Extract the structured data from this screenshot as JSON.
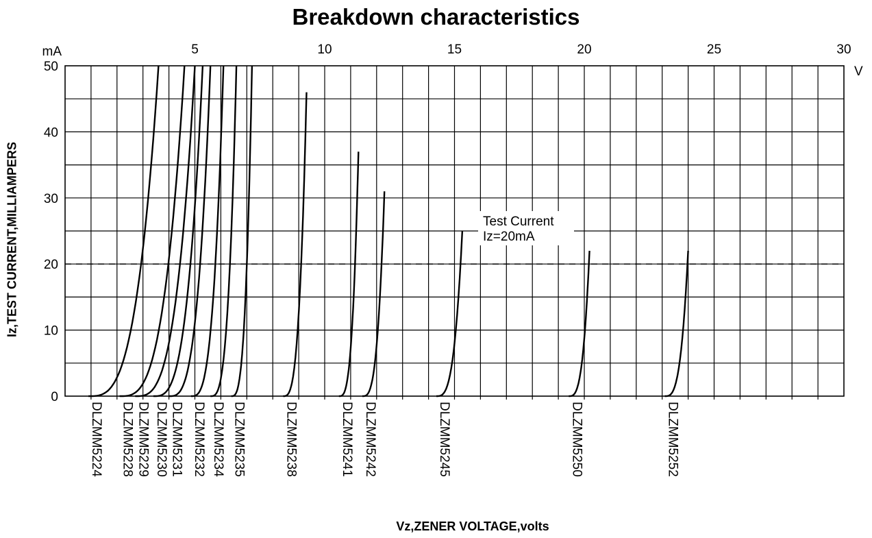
{
  "chart_data": {
    "type": "line",
    "title": "Breakdown characteristics",
    "xlabel": "Vz,ZENER VOLTAGE,volts",
    "ylabel": "Iz,TEST CURRENT,MILLIAMPERS",
    "x_unit": "V",
    "y_unit": "mA",
    "xlim": [
      0,
      30
    ],
    "ylim": [
      0,
      50
    ],
    "x_ticks": [
      5,
      10,
      15,
      20,
      25,
      30
    ],
    "y_ticks": [
      0,
      10,
      20,
      30,
      40,
      50
    ],
    "grid": true,
    "test_current_line": 20,
    "annotation": [
      "Test Current",
      "Iz=20mA"
    ],
    "series": [
      {
        "name": "DLZMM5224",
        "vz": 3.6,
        "imax": 50,
        "slope": 2.2
      },
      {
        "name": "DLZMM5228",
        "vz": 4.6,
        "imax": 50,
        "slope": 2.0
      },
      {
        "name": "DLZMM5229",
        "vz": 5.0,
        "imax": 50,
        "slope": 1.8
      },
      {
        "name": "DLZMM5230",
        "vz": 5.3,
        "imax": 50,
        "slope": 1.4
      },
      {
        "name": "DLZMM5231",
        "vz": 5.6,
        "imax": 50,
        "slope": 1.1
      },
      {
        "name": "DLZMM5232",
        "vz": 6.1,
        "imax": 50,
        "slope": 0.75
      },
      {
        "name": "DLZMM5234",
        "vz": 6.6,
        "imax": 50,
        "slope": 0.5
      },
      {
        "name": "DLZMM5235",
        "vz": 7.2,
        "imax": 50,
        "slope": 0.3
      },
      {
        "name": "DLZMM5238",
        "vz": 9.3,
        "imax": 46,
        "slope": 0.4
      },
      {
        "name": "DLZMM5241",
        "vz": 11.3,
        "imax": 37,
        "slope": 0.25
      },
      {
        "name": "DLZMM5242",
        "vz": 12.3,
        "imax": 31,
        "slope": 0.35
      },
      {
        "name": "DLZMM5245",
        "vz": 15.3,
        "imax": 25,
        "slope": 0.5
      },
      {
        "name": "DLZMM5250",
        "vz": 20.2,
        "imax": 22,
        "slope": 0.3
      },
      {
        "name": "DLZMM5252",
        "vz": 24.0,
        "imax": 22,
        "slope": 0.4
      }
    ]
  }
}
